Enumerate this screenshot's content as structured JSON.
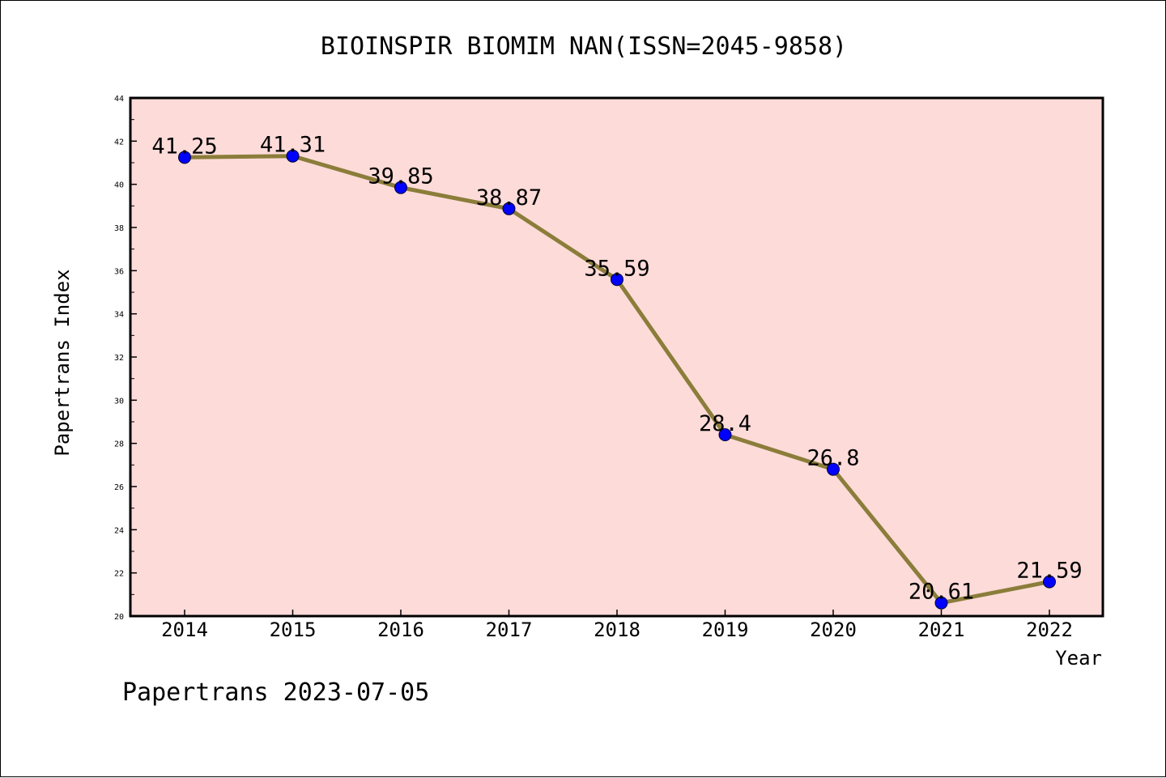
{
  "colors": {
    "plot_background": "#fddbd9",
    "line": "#8b7d3a",
    "marker_fill": "#0000ff",
    "marker_stroke": "#000033",
    "axis": "#000000",
    "page_background": "#ffffff"
  },
  "footer": {
    "text": "Papertrans 2023-07-05"
  },
  "chart_data": {
    "type": "line",
    "title": "BIOINSPIR BIOMIM NAN(ISSN=2045-9858)",
    "xlabel": "Year",
    "ylabel": "Papertrans Index",
    "ylim": [
      20,
      44
    ],
    "yticks": [
      20,
      22,
      24,
      26,
      28,
      30,
      32,
      34,
      36,
      38,
      40,
      42,
      44
    ],
    "grid": false,
    "legend": "none",
    "categories": [
      "2014",
      "2015",
      "2016",
      "2017",
      "2018",
      "2019",
      "2020",
      "2021",
      "2022"
    ],
    "series": [
      {
        "values": [
          41.25,
          41.31,
          39.85,
          38.87,
          35.59,
          28.4,
          26.8,
          20.61,
          21.59
        ],
        "data_labels": [
          "41.25",
          "41.31",
          "39.85",
          "38.87",
          "35.59",
          "28.4",
          "26.8",
          "20.61",
          "21.59"
        ]
      }
    ]
  }
}
